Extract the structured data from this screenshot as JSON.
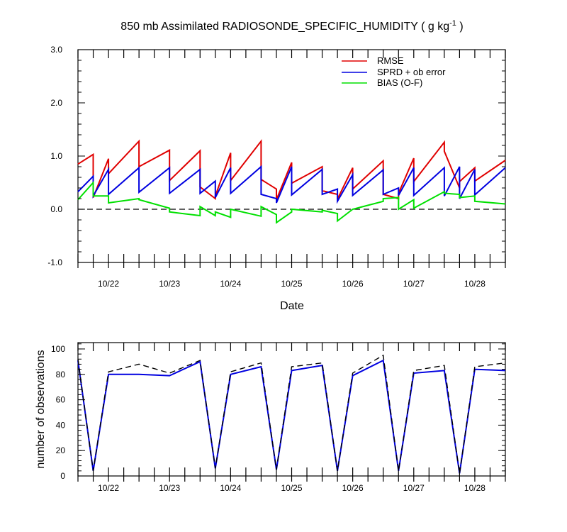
{
  "chart_data": [
    {
      "type": "line",
      "title": "850 mb Assimilated RADIOSONDE_SPECIFIC_HUMIDITY ( g kg",
      "title_sup": "-1",
      "title_end": " )",
      "xlabel": "Date",
      "ylabel": "",
      "ylim": [
        -1.0,
        3.0
      ],
      "xlim": [
        0,
        7.0
      ],
      "yticks": [
        "-1.0",
        "0.0",
        "1.0",
        "2.0",
        "3.0"
      ],
      "ytick_values": [
        -1.0,
        0.0,
        1.0,
        2.0,
        3.0
      ],
      "xticks": [
        "10/22",
        "10/23",
        "10/24",
        "10/25",
        "10/26",
        "10/27",
        "10/28"
      ],
      "xtick_values": [
        0.5,
        1.5,
        2.5,
        3.5,
        4.5,
        5.5,
        6.5
      ],
      "zero_line": true,
      "legend_position": "top-right",
      "series": [
        {
          "name": "RMSE",
          "color": "#e00000",
          "x": [
            0,
            0.25,
            0.25,
            0.5,
            0.5,
            1.0,
            1.0,
            1.5,
            1.5,
            2.0,
            2.0,
            2.25,
            2.25,
            2.5,
            2.5,
            3.0,
            3.0,
            3.25,
            3.25,
            3.5,
            3.5,
            4.0,
            4.0,
            4.25,
            4.25,
            4.5,
            4.5,
            5.0,
            5.0,
            5.25,
            5.25,
            5.5,
            5.5,
            6.0,
            6.0,
            6.25,
            6.25,
            6.5,
            6.5,
            7.0
          ],
          "y": [
            0.85,
            1.03,
            0.22,
            0.95,
            0.67,
            1.28,
            0.8,
            1.11,
            0.54,
            1.1,
            0.42,
            0.2,
            0.25,
            1.06,
            0.54,
            1.28,
            0.56,
            0.38,
            0.18,
            0.88,
            0.49,
            0.8,
            0.35,
            0.28,
            0.19,
            0.78,
            0.38,
            0.91,
            0.28,
            0.2,
            0.3,
            0.96,
            0.52,
            1.26,
            1.09,
            0.4,
            0.52,
            0.78,
            0.53,
            0.92
          ]
        },
        {
          "name": "SPRD + ob error",
          "color": "#0000e0",
          "x": [
            0,
            0.25,
            0.25,
            0.5,
            0.5,
            1.0,
            1.0,
            1.5,
            1.5,
            2.0,
            2.0,
            2.25,
            2.25,
            2.5,
            2.5,
            3.0,
            3.0,
            3.25,
            3.25,
            3.5,
            3.5,
            4.0,
            4.0,
            4.25,
            4.25,
            4.5,
            4.5,
            5.0,
            5.0,
            5.25,
            5.25,
            5.5,
            5.5,
            6.0,
            6.0,
            6.25,
            6.25,
            6.5,
            6.5,
            7.0
          ],
          "y": [
            0.33,
            0.62,
            0.25,
            0.75,
            0.28,
            0.78,
            0.32,
            0.78,
            0.3,
            0.75,
            0.3,
            0.53,
            0.22,
            0.78,
            0.3,
            0.8,
            0.28,
            0.2,
            0.12,
            0.8,
            0.27,
            0.75,
            0.28,
            0.38,
            0.15,
            0.65,
            0.26,
            0.74,
            0.28,
            0.4,
            0.26,
            0.78,
            0.26,
            0.78,
            0.25,
            0.8,
            0.2,
            0.75,
            0.27,
            0.78
          ]
        },
        {
          "name": "BIAS (O-F)",
          "color": "#00e000",
          "x": [
            0,
            0.25,
            0.25,
            0.5,
            0.5,
            1.0,
            1.0,
            1.5,
            1.5,
            2.0,
            2.0,
            2.25,
            2.25,
            2.5,
            2.5,
            3.0,
            3.0,
            3.25,
            3.25,
            3.5,
            3.5,
            4.0,
            4.0,
            4.25,
            4.25,
            4.5,
            4.5,
            5.0,
            5.0,
            5.25,
            5.25,
            5.5,
            5.5,
            6.0,
            6.0,
            6.25,
            6.25,
            6.5,
            6.5,
            7.0
          ],
          "y": [
            0.18,
            0.5,
            0.25,
            0.25,
            0.12,
            0.2,
            0.18,
            0.02,
            -0.05,
            -0.12,
            0.05,
            -0.12,
            -0.05,
            -0.15,
            0.0,
            -0.13,
            0.05,
            -0.1,
            -0.25,
            -0.05,
            0.0,
            -0.05,
            -0.02,
            -0.08,
            -0.22,
            0.0,
            0.0,
            0.15,
            0.2,
            0.22,
            0.0,
            0.18,
            0.02,
            0.33,
            0.3,
            0.28,
            0.22,
            0.25,
            0.15,
            0.1
          ]
        }
      ]
    },
    {
      "type": "line",
      "title": "",
      "xlabel": "",
      "ylabel": "number of observations",
      "ylim": [
        0,
        105
      ],
      "xlim": [
        0,
        7.0
      ],
      "yticks": [
        "0",
        "20",
        "40",
        "60",
        "80",
        "100"
      ],
      "ytick_values": [
        0,
        20,
        40,
        60,
        80,
        100
      ],
      "xticks": [
        "10/22",
        "10/23",
        "10/24",
        "10/25",
        "10/26",
        "10/27",
        "10/28"
      ],
      "xtick_values": [
        0.5,
        1.5,
        2.5,
        3.5,
        4.5,
        5.5,
        6.5
      ],
      "series": [
        {
          "color": "#0000e0",
          "style": "solid",
          "x": [
            0,
            0.25,
            0.5,
            1.0,
            1.5,
            2.0,
            2.25,
            2.5,
            3.0,
            3.25,
            3.5,
            4.0,
            4.25,
            4.5,
            5.0,
            5.25,
            5.5,
            6.0,
            6.25,
            6.5,
            7.0
          ],
          "y": [
            91,
            4,
            80,
            80,
            79,
            90,
            6,
            80,
            86,
            5,
            83,
            87,
            4,
            79,
            91,
            4,
            81,
            83,
            2,
            84,
            83
          ]
        },
        {
          "color": "#000000",
          "style": "dashed",
          "x": [
            0,
            0.25,
            0.5,
            1.0,
            1.5,
            2.0,
            2.25,
            2.5,
            3.0,
            3.25,
            3.5,
            4.0,
            4.25,
            4.5,
            5.0,
            5.25,
            5.5,
            6.0,
            6.25,
            6.5,
            7.0
          ],
          "y": [
            92,
            4,
            82,
            88,
            81,
            91,
            6,
            82,
            89,
            5,
            86,
            89,
            4,
            81,
            95,
            4,
            83,
            87,
            2,
            86,
            89
          ]
        }
      ]
    }
  ]
}
